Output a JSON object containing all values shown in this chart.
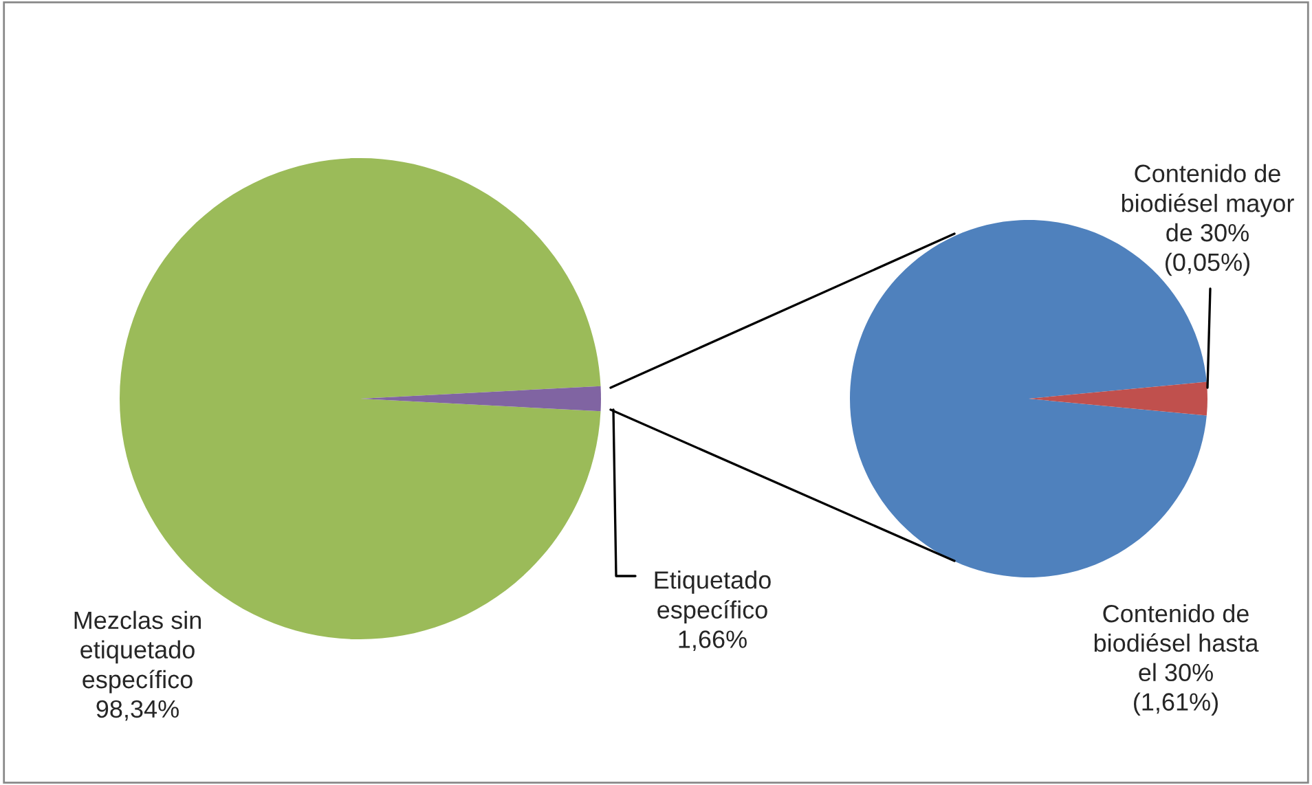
{
  "chart_data": [
    {
      "type": "pie",
      "categories": [
        "Mezclas sin etiquetado específico",
        "Etiquetado específico"
      ],
      "values": [
        98.34,
        1.66
      ],
      "colors": [
        "#9bbb59",
        "#8064a2"
      ],
      "value_labels": [
        "98,34%",
        "1,66%"
      ]
    },
    {
      "type": "pie",
      "categories": [
        "Contenido de biodiésel hasta el 30%",
        "Contenido de biodiésel mayor de 30%"
      ],
      "values": [
        1.61,
        0.05
      ],
      "colors": [
        "#4f81bd",
        "#c0504d"
      ],
      "value_labels": [
        "(1,61%)",
        "(0,05%)"
      ]
    }
  ]
}
